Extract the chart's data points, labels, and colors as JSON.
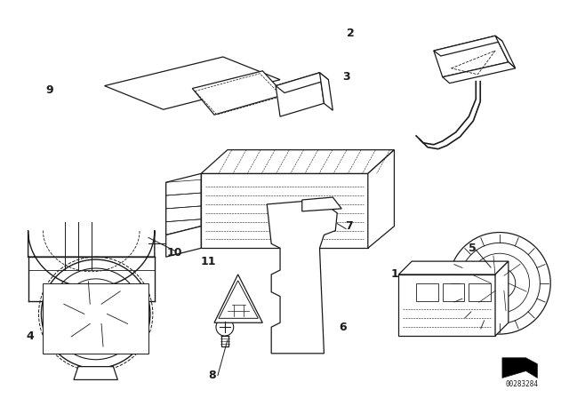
{
  "background_color": "#ffffff",
  "line_color": "#1a1a1a",
  "fig_width": 6.4,
  "fig_height": 4.48,
  "dpi": 100,
  "diagram_id": "00283284"
}
